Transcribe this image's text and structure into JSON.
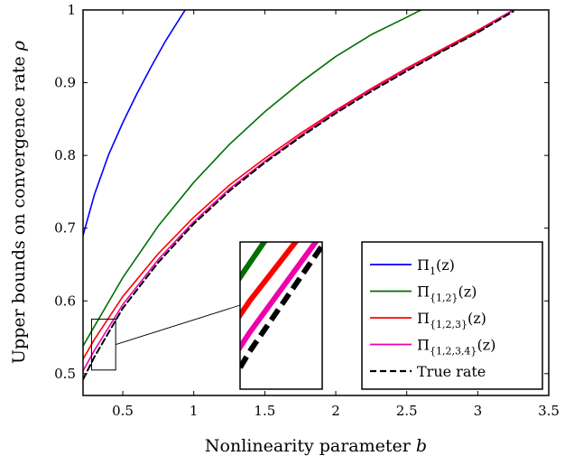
{
  "chart_data": {
    "type": "line",
    "xlabel": "Nonlinearity parameter",
    "xlabel_symbol": "b",
    "ylabel": "Upper bounds on convergence rate",
    "ylabel_symbol": "ρ",
    "xlim": [
      0.22,
      3.5
    ],
    "ylim": [
      0.47,
      1.0
    ],
    "xticks": [
      0.5,
      1,
      1.5,
      2,
      2.5,
      3,
      3.5
    ],
    "xtick_labels": [
      "0.5",
      "1",
      "1.5",
      "2",
      "2.5",
      "3",
      "3.5"
    ],
    "yticks": [
      0.5,
      0.6,
      0.7,
      0.8,
      0.9,
      1
    ],
    "ytick_labels": [
      "0.5",
      "0.6",
      "0.7",
      "0.8",
      "0.9",
      "1"
    ],
    "grid": false,
    "legend_position": "bottom-right",
    "inset": {
      "zoom_xlim": [
        0.28,
        0.45
      ],
      "zoom_ylim": [
        0.505,
        0.575
      ],
      "position": "bottom-center"
    },
    "series": [
      {
        "name": "Π",
        "name_sub": "1",
        "name_suffix": "(z)",
        "color": "#0000ff",
        "dashed": false,
        "x": [
          0.22,
          0.3,
          0.4,
          0.5,
          0.6,
          0.7,
          0.8,
          0.9,
          0.94
        ],
        "y": [
          0.69,
          0.746,
          0.801,
          0.845,
          0.885,
          0.922,
          0.957,
          0.988,
          1.0
        ]
      },
      {
        "name": "Π",
        "name_sub": "{1,2}",
        "name_suffix": "(z)",
        "color": "#007000",
        "dashed": false,
        "x": [
          0.22,
          0.3,
          0.5,
          0.75,
          1.0,
          1.25,
          1.5,
          1.75,
          2.0,
          2.25,
          2.5,
          2.6
        ],
        "y": [
          0.538,
          0.565,
          0.632,
          0.703,
          0.763,
          0.815,
          0.86,
          0.9,
          0.936,
          0.966,
          0.99,
          1.0
        ]
      },
      {
        "name": "Π",
        "name_sub": "{1,2,3}",
        "name_suffix": "(z)",
        "color": "#ff0000",
        "dashed": false,
        "x": [
          0.22,
          0.3,
          0.5,
          0.75,
          1.0,
          1.25,
          1.5,
          1.75,
          2.0,
          2.25,
          2.5,
          2.75,
          3.0,
          3.25
        ],
        "y": [
          0.52,
          0.547,
          0.606,
          0.665,
          0.715,
          0.759,
          0.796,
          0.83,
          0.862,
          0.892,
          0.92,
          0.946,
          0.972,
          1.0
        ]
      },
      {
        "name": "Π",
        "name_sub": "{1,2,3,4}",
        "name_suffix": "(z)",
        "color": "#ee00aa",
        "dashed": false,
        "x": [
          0.22,
          0.3,
          0.5,
          0.75,
          1.0,
          1.25,
          1.5,
          1.75,
          2.0,
          2.25,
          2.5,
          2.75,
          3.0,
          3.25
        ],
        "y": [
          0.504,
          0.532,
          0.595,
          0.657,
          0.709,
          0.754,
          0.792,
          0.827,
          0.86,
          0.89,
          0.918,
          0.944,
          0.97,
          1.0
        ]
      },
      {
        "name": "True rate",
        "color": "#000000",
        "dashed": true,
        "x": [
          0.22,
          0.3,
          0.5,
          0.75,
          1.0,
          1.25,
          1.5,
          1.75,
          2.0,
          2.25,
          2.5,
          2.75,
          3.0,
          3.25
        ],
        "y": [
          0.492,
          0.523,
          0.59,
          0.653,
          0.706,
          0.751,
          0.79,
          0.825,
          0.858,
          0.888,
          0.916,
          0.943,
          0.969,
          0.998
        ]
      }
    ]
  }
}
